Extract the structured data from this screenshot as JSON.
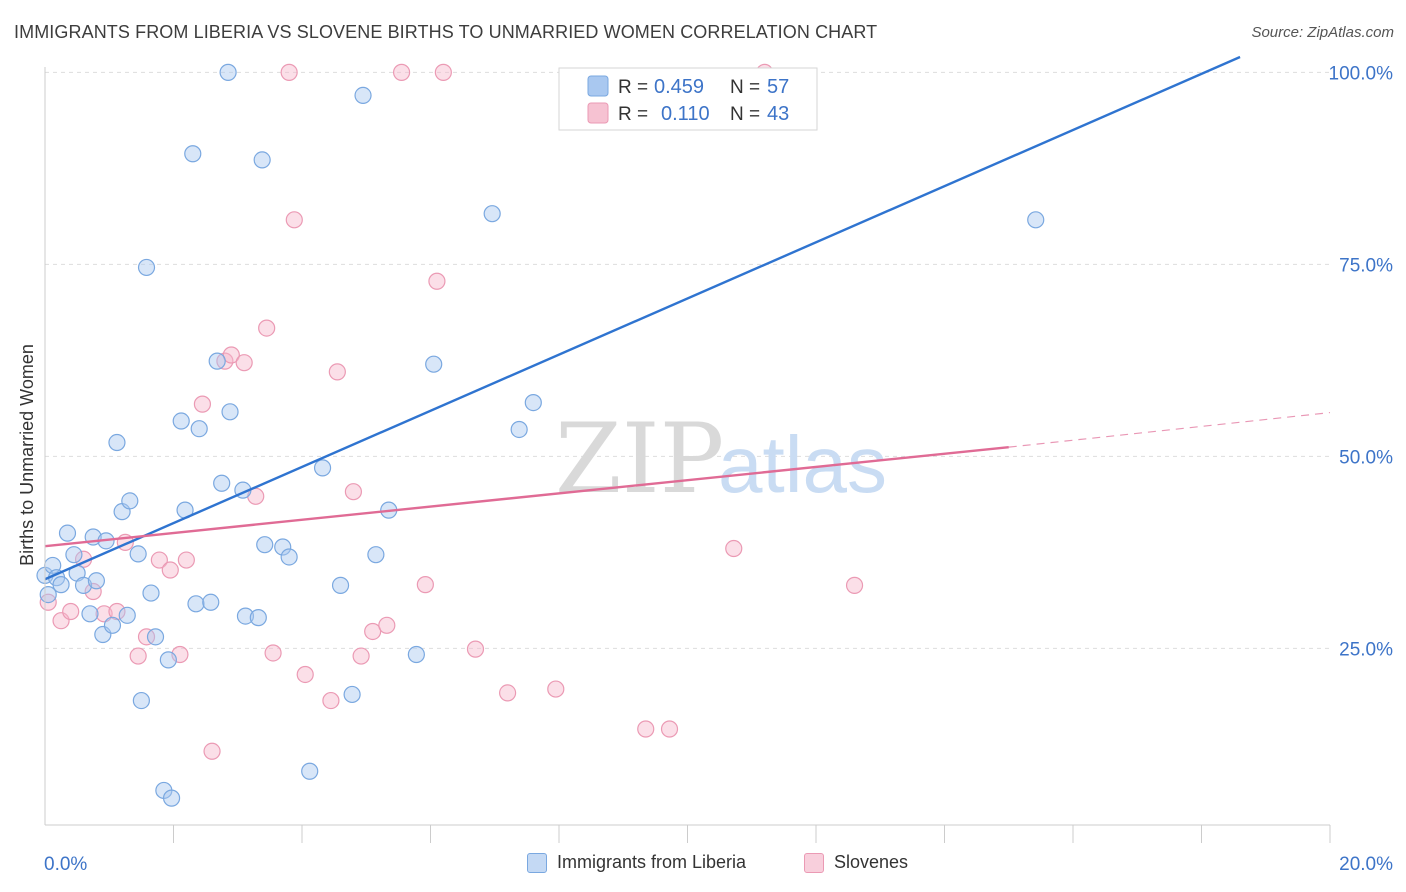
{
  "title": "IMMIGRANTS FROM LIBERIA VS SLOVENE BIRTHS TO UNMARRIED WOMEN CORRELATION CHART",
  "source": "Source: ZipAtlas.com",
  "watermark": {
    "zip": "ZIP",
    "atlas": "atlas"
  },
  "colors": {
    "blue_fill": "#a9c8f0",
    "blue_stroke": "#7aa8e0",
    "blue_line": "#2f74d0",
    "pink_fill": "#f6b8cb",
    "pink_stroke": "#eb9ab4",
    "pink_line": "#e06b95",
    "axis_text": "#3d74c8",
    "grid": "#dddddd"
  },
  "stats_legend": {
    "rows": [
      {
        "series": "blue",
        "r_label": "R =",
        "r_value": "0.459",
        "n_label": "N =",
        "n_value": "57"
      },
      {
        "series": "pink",
        "r_label": "R =",
        "r_value": "0.110",
        "n_label": "N =",
        "n_value": "43"
      }
    ]
  },
  "bottom_legend": [
    {
      "series": "blue",
      "label": "Immigrants from Liberia"
    },
    {
      "series": "pink",
      "label": "Slovenes"
    }
  ],
  "chart_data": {
    "type": "scatter",
    "title": "IMMIGRANTS FROM LIBERIA VS SLOVENE BIRTHS TO UNMARRIED WOMEN CORRELATION CHART",
    "xlabel": "",
    "ylabel": "Births to Unmarried Women",
    "xlim": [
      0,
      20
    ],
    "ylim": [
      2,
      102
    ],
    "x_tick_labels": [
      {
        "value": 0,
        "label": "0.0%"
      },
      {
        "value": 20,
        "label": "20.0%"
      }
    ],
    "y_tick_labels": [
      {
        "value": 25,
        "label": "25.0%"
      },
      {
        "value": 50,
        "label": "50.0%"
      },
      {
        "value": 75,
        "label": "75.0%"
      },
      {
        "value": 100,
        "label": "100.0%"
      }
    ],
    "y_gridlines": [
      25,
      50,
      75,
      100
    ],
    "x_minor_ticks": [
      2,
      4,
      6,
      8,
      10,
      12,
      14,
      16,
      18,
      20
    ],
    "series": [
      {
        "name": "Immigrants from Liberia",
        "color": "blue",
        "R": 0.459,
        "N": 57,
        "trend": {
          "x0": 0,
          "y0": 34.0,
          "x1": 18.6,
          "y1": 102.0,
          "dashed_to": null
        },
        "points": [
          [
            0.0,
            34.5
          ],
          [
            0.12,
            35.8
          ],
          [
            0.18,
            34.2
          ],
          [
            0.25,
            33.3
          ],
          [
            0.35,
            40.0
          ],
          [
            0.45,
            37.2
          ],
          [
            0.5,
            34.8
          ],
          [
            0.6,
            33.2
          ],
          [
            0.7,
            29.5
          ],
          [
            0.75,
            39.5
          ],
          [
            0.8,
            33.8
          ],
          [
            0.9,
            26.8
          ],
          [
            0.95,
            39.0
          ],
          [
            1.05,
            28.0
          ],
          [
            1.12,
            51.8
          ],
          [
            1.2,
            42.8
          ],
          [
            1.28,
            29.3
          ],
          [
            1.32,
            44.2
          ],
          [
            1.45,
            37.3
          ],
          [
            1.5,
            18.2
          ],
          [
            1.58,
            74.6
          ],
          [
            1.65,
            32.2
          ],
          [
            1.72,
            26.5
          ],
          [
            1.85,
            6.5
          ],
          [
            1.92,
            23.5
          ],
          [
            1.97,
            5.5
          ],
          [
            2.12,
            54.6
          ],
          [
            2.18,
            43.0
          ],
          [
            2.3,
            89.4
          ],
          [
            2.35,
            30.8
          ],
          [
            2.4,
            53.6
          ],
          [
            2.58,
            31.0
          ],
          [
            2.68,
            62.4
          ],
          [
            2.75,
            46.5
          ],
          [
            2.85,
            100.0
          ],
          [
            2.88,
            55.8
          ],
          [
            3.08,
            45.6
          ],
          [
            3.12,
            29.2
          ],
          [
            3.32,
            29.0
          ],
          [
            3.38,
            88.6
          ],
          [
            3.42,
            38.5
          ],
          [
            3.7,
            38.2
          ],
          [
            3.8,
            36.9
          ],
          [
            4.12,
            9.0
          ],
          [
            4.32,
            48.5
          ],
          [
            4.6,
            33.2
          ],
          [
            4.78,
            19.0
          ],
          [
            4.95,
            97.0
          ],
          [
            5.15,
            37.2
          ],
          [
            5.35,
            43.0
          ],
          [
            5.78,
            24.2
          ],
          [
            6.05,
            62.0
          ],
          [
            6.96,
            81.6
          ],
          [
            7.38,
            53.5
          ],
          [
            7.6,
            57.0
          ],
          [
            15.42,
            80.8
          ],
          [
            0.05,
            32.0
          ]
        ]
      },
      {
        "name": "Slovenes",
        "color": "pink",
        "R": 0.11,
        "N": 43,
        "trend": {
          "x0": 0,
          "y0": 38.3,
          "x1": 15.0,
          "y1": 51.2,
          "dashed_to": {
            "x": 20,
            "y": 55.7
          }
        },
        "points": [
          [
            0.05,
            31.0
          ],
          [
            0.25,
            28.6
          ],
          [
            0.4,
            29.8
          ],
          [
            0.6,
            36.6
          ],
          [
            0.75,
            32.4
          ],
          [
            0.92,
            29.5
          ],
          [
            1.12,
            29.8
          ],
          [
            1.25,
            38.8
          ],
          [
            1.45,
            24.0
          ],
          [
            1.58,
            26.5
          ],
          [
            1.78,
            36.5
          ],
          [
            1.95,
            35.2
          ],
          [
            2.1,
            24.2
          ],
          [
            2.2,
            36.5
          ],
          [
            2.45,
            56.8
          ],
          [
            2.6,
            11.6
          ],
          [
            2.8,
            62.4
          ],
          [
            2.9,
            63.2
          ],
          [
            3.1,
            62.2
          ],
          [
            3.28,
            44.8
          ],
          [
            3.45,
            66.7
          ],
          [
            3.55,
            24.4
          ],
          [
            3.8,
            100.0
          ],
          [
            3.88,
            80.8
          ],
          [
            4.05,
            21.6
          ],
          [
            4.45,
            18.2
          ],
          [
            4.55,
            61.0
          ],
          [
            4.8,
            45.4
          ],
          [
            4.92,
            24.0
          ],
          [
            5.1,
            27.2
          ],
          [
            5.32,
            28.0
          ],
          [
            5.55,
            100.0
          ],
          [
            5.92,
            33.3
          ],
          [
            6.1,
            72.8
          ],
          [
            6.2,
            100.0
          ],
          [
            6.7,
            24.9
          ],
          [
            7.2,
            19.2
          ],
          [
            7.95,
            19.7
          ],
          [
            9.35,
            14.5
          ],
          [
            9.72,
            14.5
          ],
          [
            10.72,
            38.0
          ],
          [
            11.2,
            100.0
          ],
          [
            12.6,
            33.2
          ]
        ]
      }
    ]
  }
}
